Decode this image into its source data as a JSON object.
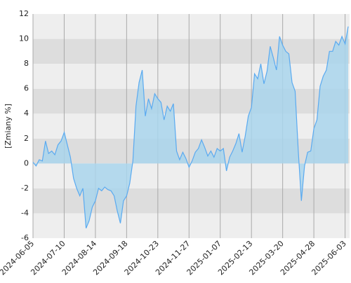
{
  "chart_data": {
    "type": "area",
    "y_label": "[Zmiany %]",
    "categories": [
      "2024-06-05",
      null,
      null,
      null,
      null,
      null,
      null,
      null,
      null,
      null,
      "2024-07-10",
      null,
      null,
      null,
      null,
      null,
      null,
      null,
      null,
      null,
      "2024-08-14",
      null,
      null,
      null,
      null,
      null,
      null,
      null,
      null,
      null,
      "2024-09-18",
      null,
      null,
      null,
      null,
      null,
      null,
      null,
      null,
      null,
      "2024-10-23",
      null,
      null,
      null,
      null,
      null,
      null,
      null,
      null,
      null,
      "2024-11-27",
      null,
      null,
      null,
      null,
      null,
      null,
      null,
      null,
      null,
      "2025-01-07",
      null,
      null,
      null,
      null,
      null,
      null,
      null,
      null,
      null,
      "2025-02-13",
      null,
      null,
      null,
      null,
      null,
      null,
      null,
      null,
      null,
      "2025-03-20",
      null,
      null,
      null,
      null,
      null,
      null,
      null,
      null,
      null,
      "2025-04-28",
      null,
      null,
      null,
      null,
      null,
      null,
      null,
      null,
      null,
      "2025-06-03",
      null
    ],
    "values": [
      0.1,
      -0.2,
      0.3,
      0.2,
      1.8,
      0.8,
      1.0,
      0.7,
      1.5,
      1.8,
      2.5,
      1.5,
      0.5,
      -1.2,
      -2.0,
      -2.6,
      -2.0,
      -5.2,
      -4.6,
      -3.5,
      -3.0,
      -2.0,
      -2.2,
      -1.9,
      -2.1,
      -2.2,
      -2.6,
      -3.8,
      -4.8,
      -3.0,
      -2.6,
      -1.6,
      0.2,
      4.6,
      6.5,
      7.5,
      3.8,
      5.2,
      4.4,
      5.6,
      5.2,
      4.9,
      3.5,
      4.6,
      4.2,
      4.8,
      1.0,
      0.3,
      0.9,
      0.4,
      -0.3,
      0.2,
      0.9,
      1.2,
      1.9,
      1.3,
      0.6,
      1.0,
      0.5,
      1.2,
      1.0,
      1.2,
      -0.6,
      0.5,
      1.0,
      1.6,
      2.4,
      0.9,
      2.2,
      3.8,
      4.5,
      7.2,
      6.8,
      8.0,
      6.4,
      7.4,
      9.4,
      8.5,
      7.5,
      10.2,
      9.5,
      9.0,
      8.8,
      6.5,
      5.8,
      1.0,
      -3.0,
      -0.2,
      0.9,
      1.0,
      2.8,
      3.5,
      6.2,
      7.0,
      7.5,
      9.0,
      9.0,
      9.8,
      9.5,
      10.2,
      9.6,
      11.0
    ],
    "color": "#5aaaf0",
    "fill_color": "#a9d5ec",
    "ylim": [
      -6,
      12
    ],
    "yticks": [
      -6,
      -4,
      -2,
      0,
      2,
      4,
      6,
      8,
      10,
      12
    ],
    "grid": true,
    "band_colors": [
      "#eeeeee",
      "#dddddd"
    ]
  }
}
